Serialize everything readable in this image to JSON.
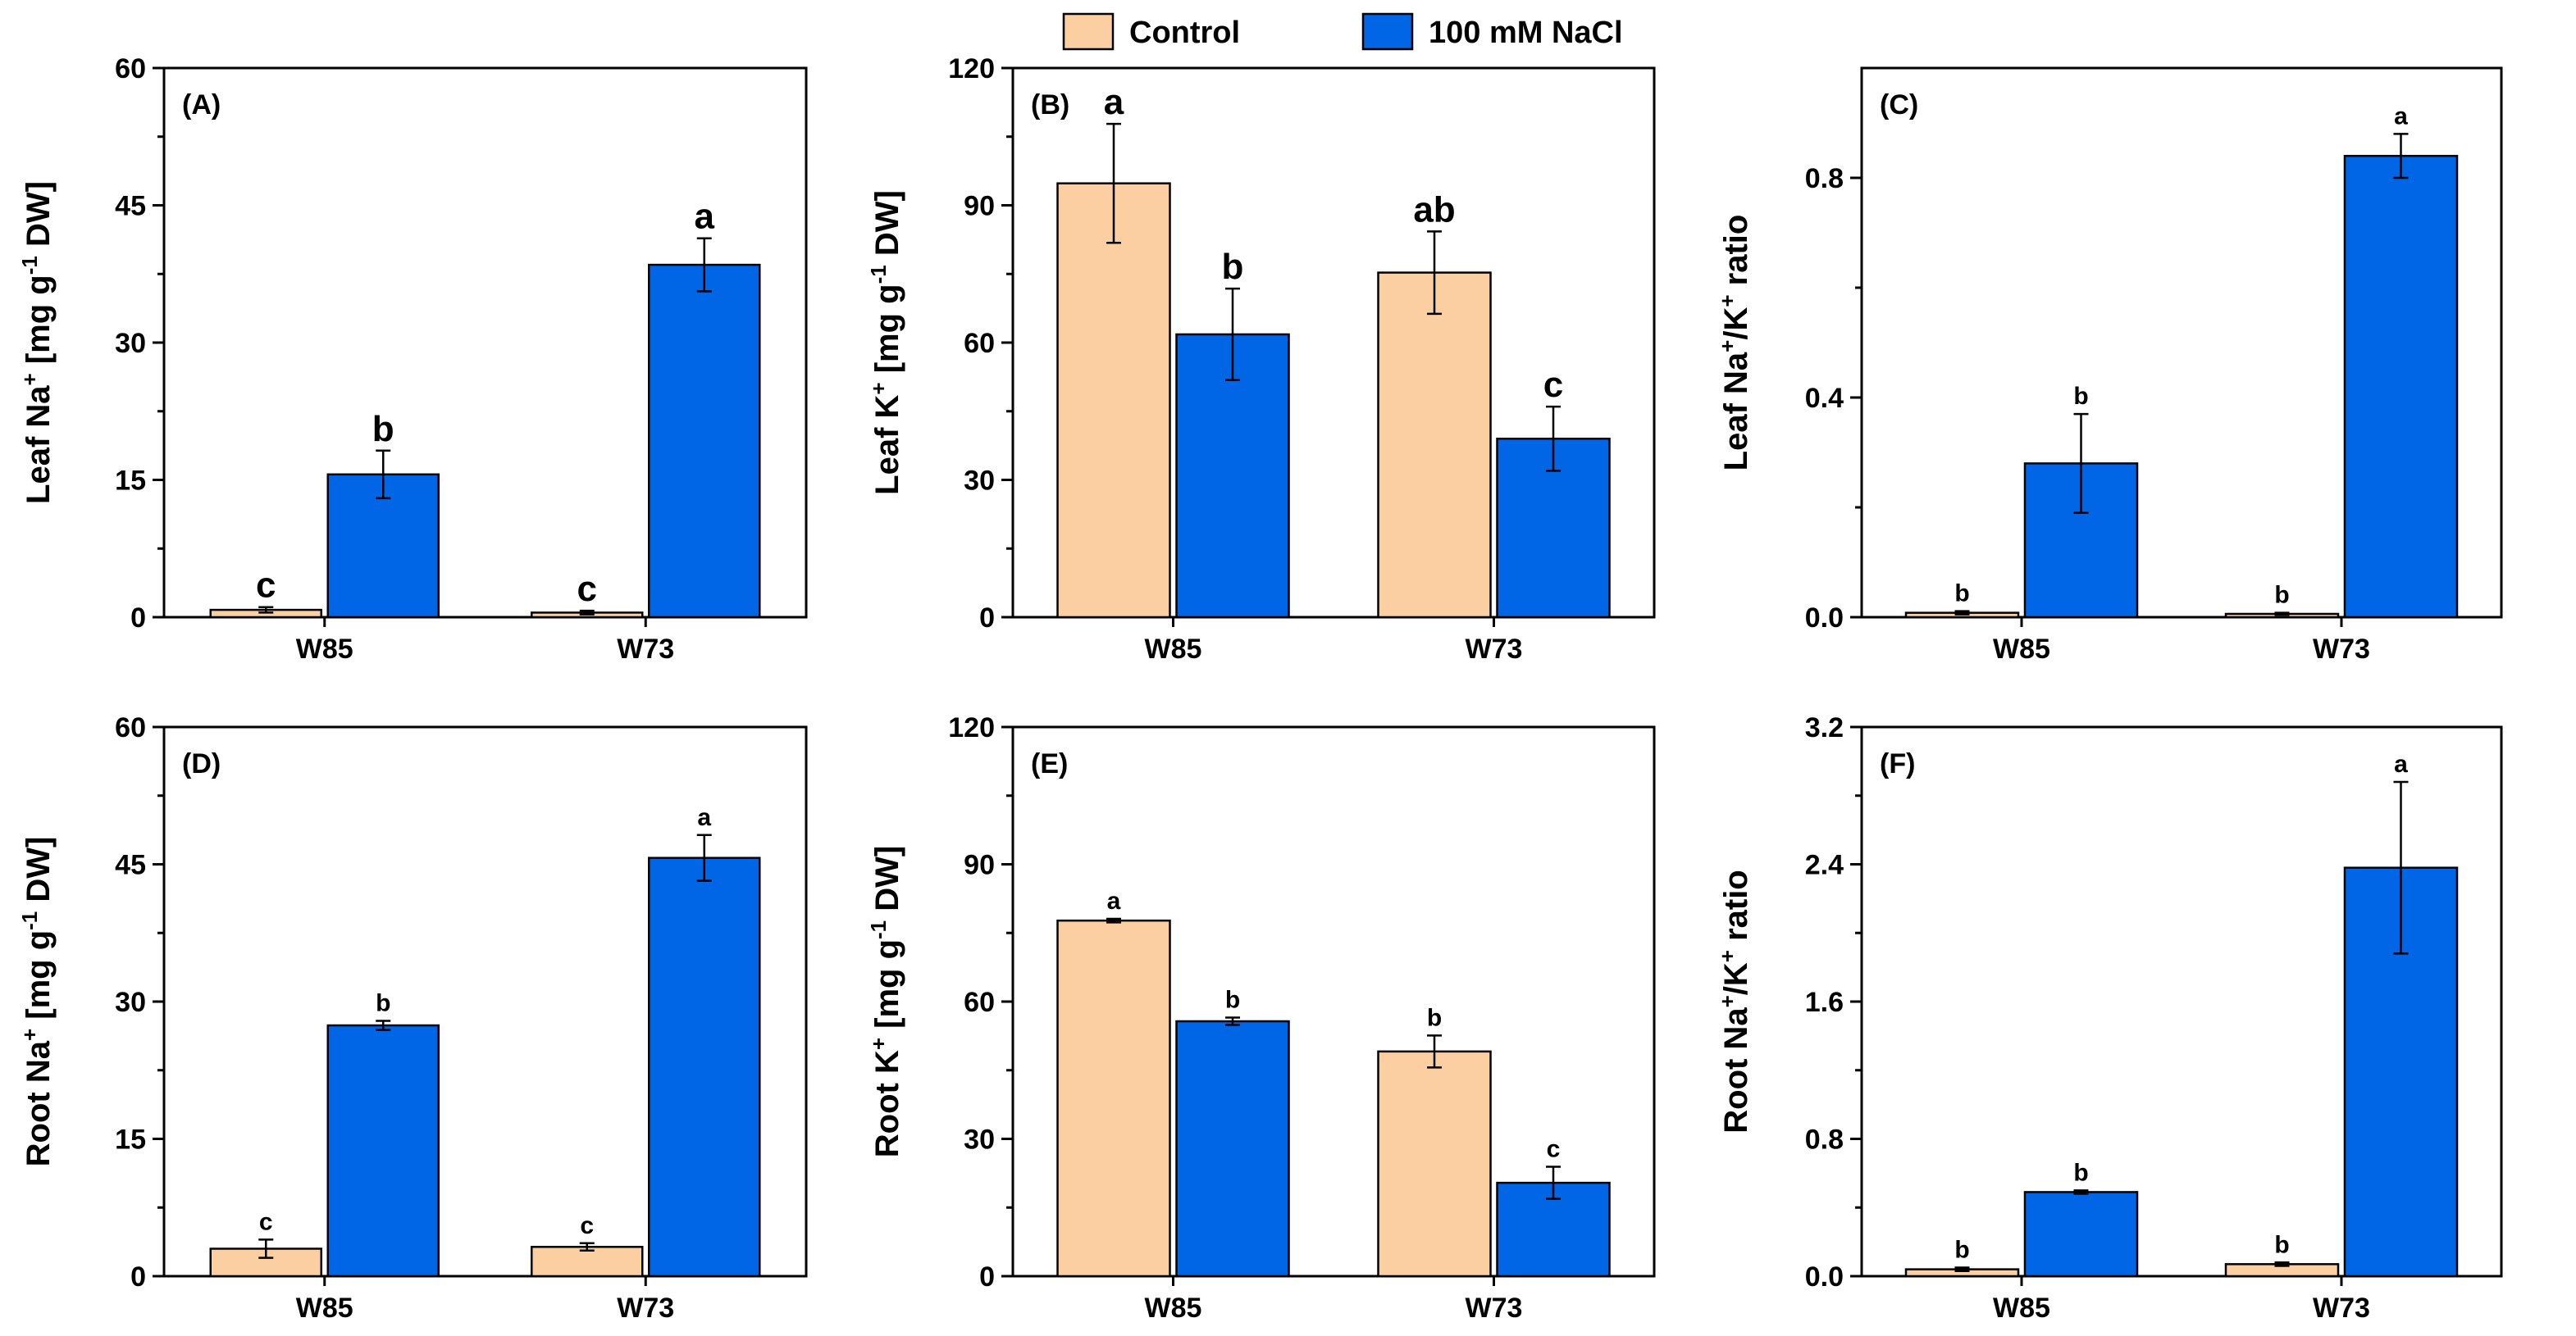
{
  "legend": {
    "items": [
      {
        "name": "Control",
        "color": "#FBCFA2"
      },
      {
        "name": "100 mM NaCl",
        "color": "#0066E6"
      }
    ]
  },
  "chart_data": [
    {
      "type": "bar",
      "panel_label": "(A)",
      "ylabel": {
        "main": "Leaf Na",
        "sup": "+",
        "rest": " [mg g",
        "sup2": "-1",
        "rest2": " DW]"
      },
      "categories": [
        "W85",
        "W73"
      ],
      "ylim": [
        0,
        60
      ],
      "yticks": [
        "0",
        "15",
        "30",
        "45",
        "60"
      ],
      "series": [
        {
          "name": "Control",
          "values": [
            0.8,
            0.5
          ],
          "errors": [
            0.3,
            0.2
          ],
          "letters": [
            "c",
            "c"
          ]
        },
        {
          "name": "100 mM NaCl",
          "values": [
            15.6,
            38.5
          ],
          "errors": [
            2.6,
            2.9
          ],
          "letters": [
            "b",
            "a"
          ]
        }
      ]
    },
    {
      "type": "bar",
      "panel_label": "(B)",
      "ylabel": {
        "main": "Leaf K",
        "sup": "+",
        "rest": "  [mg g",
        "sup2": "-1",
        "rest2": " DW]"
      },
      "categories": [
        "W85",
        "W73"
      ],
      "ylim": [
        0,
        120
      ],
      "yticks": [
        "0",
        "30",
        "60",
        "90",
        "120"
      ],
      "series": [
        {
          "name": "Control",
          "values": [
            94.8,
            75.3
          ],
          "errors": [
            13,
            9
          ],
          "letters": [
            "a",
            "ab"
          ]
        },
        {
          "name": "100 mM NaCl",
          "values": [
            61.8,
            39.0
          ],
          "errors": [
            10,
            7
          ],
          "letters": [
            "b",
            "c"
          ]
        }
      ]
    },
    {
      "type": "bar",
      "panel_label": "(C)",
      "ylabel": {
        "main": "Leaf Na",
        "sup": "+",
        "rest": "/K",
        "sup2": "+",
        "rest2": " ratio"
      },
      "categories": [
        "W85",
        "W73"
      ],
      "ylim": [
        0,
        1.0
      ],
      "yticks": [
        "0.0",
        "0.4",
        "0.8"
      ],
      "series": [
        {
          "name": "Control",
          "values": [
            0.008,
            0.006
          ],
          "errors": [
            0.003,
            0.002
          ],
          "letters": [
            "b",
            "b"
          ]
        },
        {
          "name": "100 mM NaCl",
          "values": [
            0.28,
            0.84
          ],
          "errors": [
            0.09,
            0.04
          ],
          "letters": [
            "b",
            "a"
          ]
        }
      ]
    },
    {
      "type": "bar",
      "panel_label": "(D)",
      "ylabel": {
        "main": "Root Na",
        "sup": "+",
        "rest": " [mg g",
        "sup2": "-1",
        "rest2": " DW]"
      },
      "categories": [
        "W85",
        "W73"
      ],
      "ylim": [
        0,
        60
      ],
      "yticks": [
        "0",
        "15",
        "30",
        "45",
        "60"
      ],
      "series": [
        {
          "name": "Control",
          "values": [
            3.0,
            3.2
          ],
          "errors": [
            1.0,
            0.4
          ],
          "letters": [
            "c",
            "c"
          ]
        },
        {
          "name": "100 mM NaCl",
          "values": [
            27.4,
            45.7
          ],
          "errors": [
            0.5,
            2.5
          ],
          "letters": [
            "b",
            "a"
          ]
        }
      ]
    },
    {
      "type": "bar",
      "panel_label": "(E)",
      "ylabel": {
        "main": "Root K",
        "sup": "+",
        "rest": " [mg g",
        "sup2": "-1",
        "rest2": " DW]"
      },
      "categories": [
        "W85",
        "W73"
      ],
      "ylim": [
        0,
        120
      ],
      "yticks": [
        "0",
        "30",
        "60",
        "90",
        "120"
      ],
      "series": [
        {
          "name": "Control",
          "values": [
            77.7,
            49.1
          ],
          "errors": [
            0.4,
            3.5
          ],
          "letters": [
            "a",
            "b"
          ]
        },
        {
          "name": "100 mM NaCl",
          "values": [
            55.7,
            20.4
          ],
          "errors": [
            0.8,
            3.5
          ],
          "letters": [
            "b",
            "c"
          ]
        }
      ]
    },
    {
      "type": "bar",
      "panel_label": "(F)",
      "ylabel": {
        "main": "Root Na",
        "sup": "+",
        "rest": "/K",
        "sup2": "+",
        "rest2": " ratio"
      },
      "categories": [
        "W85",
        "W73"
      ],
      "ylim": [
        0,
        3.2
      ],
      "yticks": [
        "0.0",
        "0.8",
        "1.6",
        "2.4",
        "3.2"
      ],
      "series": [
        {
          "name": "Control",
          "values": [
            0.04,
            0.07
          ],
          "errors": [
            0.01,
            0.01
          ],
          "letters": [
            "b",
            "b"
          ]
        },
        {
          "name": "100 mM NaCl",
          "values": [
            0.49,
            2.38
          ],
          "errors": [
            0.01,
            0.5
          ],
          "letters": [
            "b",
            "a"
          ]
        }
      ]
    }
  ]
}
